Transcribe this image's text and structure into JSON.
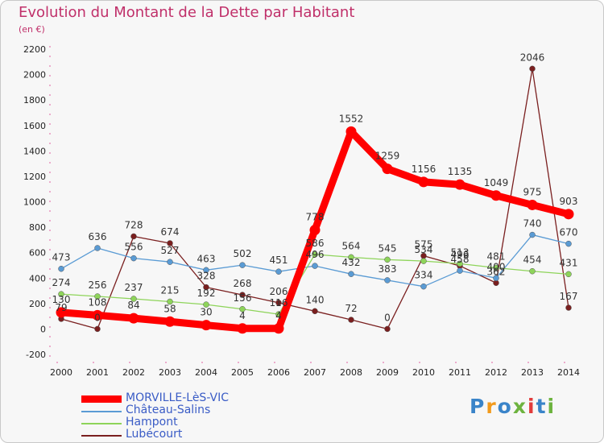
{
  "title": "Evolution du Montant de la Dette par Habitant",
  "unit": "(en €)",
  "logo": {
    "text": "Proxiti",
    "colors": [
      "#3a84c9",
      "#f29a1c",
      "#3a84c9",
      "#6db33f",
      "#e23b3b",
      "#3a84c9",
      "#6db33f"
    ]
  },
  "chart_data": {
    "type": "line",
    "x": [
      "2000",
      "2001",
      "2002",
      "2003",
      "2004",
      "2005",
      "2006",
      "2007",
      "2008",
      "2009",
      "2010",
      "2011",
      "2012",
      "2013",
      "2014"
    ],
    "ylim": [
      -200,
      2200
    ],
    "yticks": [
      -200,
      0,
      200,
      400,
      600,
      800,
      1000,
      1200,
      1400,
      1600,
      1800,
      2000,
      2200
    ],
    "grid": false,
    "legend_position": "bottom",
    "series": [
      {
        "name": "MORVILLE-LèS-VIC",
        "color": "#ff0000",
        "values": [
          130,
          108,
          84,
          58,
          30,
          4,
          4,
          778,
          1552,
          1259,
          1156,
          1135,
          1049,
          975,
          903
        ],
        "labels": [
          "130",
          "108",
          "84",
          "58",
          "30",
          "4",
          "4",
          "778",
          "1552",
          "1259",
          "1156",
          "1135",
          "1049",
          "975",
          "903"
        ]
      },
      {
        "name": "Château-Salins",
        "color": "#5a9bd4",
        "values": [
          473,
          636,
          556,
          527,
          463,
          502,
          451,
          496,
          432,
          383,
          334,
          458,
          400,
          740,
          670
        ],
        "labels": [
          "473",
          "636",
          "556",
          "527",
          "463",
          "502",
          "451",
          "496",
          "432",
          "383",
          "334",
          "458",
          "400",
          "740",
          "670"
        ]
      },
      {
        "name": "Hampont",
        "color": "#8ed45a",
        "values": [
          274,
          256,
          237,
          215,
          192,
          156,
          116,
          586,
          564,
          545,
          534,
          513,
          481,
          454,
          431
        ],
        "labels": [
          "274",
          "256",
          "237",
          "215",
          "192",
          "156",
          "116",
          "586",
          "564",
          "545",
          "534",
          "513",
          "481",
          "454",
          "431"
        ]
      },
      {
        "name": "Lubécourt",
        "color": "#7a1f1f",
        "values": [
          79,
          0,
          728,
          674,
          328,
          268,
          206,
          140,
          72,
          0,
          575,
          496,
          362,
          2046,
          167
        ],
        "labels": [
          "79",
          "0",
          "728",
          "674",
          "328",
          "268",
          "206",
          "140",
          "72",
          "0",
          "575",
          "496",
          "362",
          "2046",
          "167"
        ]
      }
    ]
  }
}
